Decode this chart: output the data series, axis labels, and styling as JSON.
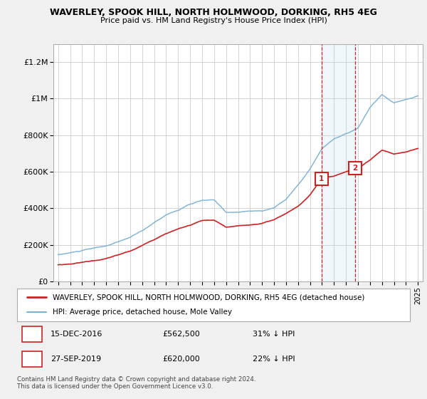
{
  "title": "WAVERLEY, SPOOK HILL, NORTH HOLMWOOD, DORKING, RH5 4EG",
  "subtitle": "Price paid vs. HM Land Registry's House Price Index (HPI)",
  "ylabel_ticks": [
    "£0",
    "£200K",
    "£400K",
    "£600K",
    "£800K",
    "£1M",
    "£1.2M"
  ],
  "ytick_values": [
    0,
    200000,
    400000,
    600000,
    800000,
    1000000,
    1200000
  ],
  "ylim": [
    0,
    1300000
  ],
  "xlim_start": 1994.6,
  "xlim_end": 2025.4,
  "hpi_color": "#7ab0d4",
  "price_color": "#cc2222",
  "background_color": "#f0f0f0",
  "plot_bg_color": "#ffffff",
  "grid_color": "#cccccc",
  "sale1_x": 2016.96,
  "sale1_y": 562500,
  "sale2_x": 2019.75,
  "sale2_y": 620000,
  "sale1_label": "1",
  "sale2_label": "2",
  "legend_line1": "WAVERLEY, SPOOK HILL, NORTH HOLMWOOD, DORKING, RH5 4EG (detached house)",
  "legend_line2": "HPI: Average price, detached house, Mole Valley",
  "copyright": "Contains HM Land Registry data © Crown copyright and database right 2024.\nThis data is licensed under the Open Government Licence v3.0.",
  "xtick_years": [
    1995,
    1996,
    1997,
    1998,
    1999,
    2000,
    2001,
    2002,
    2003,
    2004,
    2005,
    2006,
    2007,
    2008,
    2009,
    2010,
    2011,
    2012,
    2013,
    2014,
    2015,
    2016,
    2017,
    2018,
    2019,
    2020,
    2021,
    2022,
    2023,
    2024,
    2025
  ],
  "hpi_control_years": [
    1995,
    1996,
    1997,
    1998,
    1999,
    2000,
    2001,
    2002,
    2003,
    2004,
    2005,
    2006,
    2007,
    2008,
    2009,
    2010,
    2011,
    2012,
    2013,
    2014,
    2015,
    2016,
    2017,
    2018,
    2019,
    2020,
    2021,
    2022,
    2023,
    2024,
    2025
  ],
  "hpi_control_vals": [
    145000,
    155000,
    167000,
    178000,
    190000,
    210000,
    235000,
    270000,
    315000,
    360000,
    385000,
    415000,
    435000,
    435000,
    370000,
    370000,
    375000,
    375000,
    395000,
    440000,
    520000,
    610000,
    720000,
    775000,
    800000,
    830000,
    940000,
    1010000,
    965000,
    980000,
    1000000
  ],
  "price_control_years": [
    1995,
    1996,
    1997,
    1998,
    1999,
    2000,
    2001,
    2002,
    2003,
    2004,
    2005,
    2006,
    2007,
    2008,
    2009,
    2010,
    2011,
    2012,
    2013,
    2014,
    2015,
    2016,
    2016.96,
    2017,
    2018,
    2019,
    2019.75,
    2020,
    2021,
    2022,
    2023,
    2024,
    2025
  ],
  "price_control_vals": [
    90000,
    95000,
    105000,
    115000,
    125000,
    145000,
    165000,
    195000,
    230000,
    265000,
    290000,
    310000,
    335000,
    335000,
    295000,
    300000,
    305000,
    315000,
    335000,
    370000,
    410000,
    470000,
    562500,
    565000,
    575000,
    600000,
    620000,
    615000,
    660000,
    710000,
    690000,
    700000,
    720000
  ]
}
